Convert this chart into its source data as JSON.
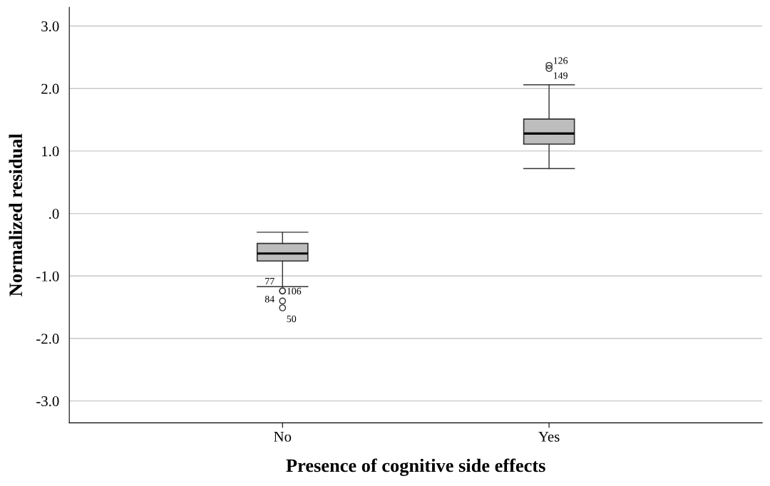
{
  "chart_data": {
    "type": "box",
    "xlabel": "Presence of cognitive side effects",
    "ylabel": "Normalized residual",
    "categories": [
      "No",
      "Yes"
    ],
    "series": [
      {
        "color": "#bdbdbd",
        "boxes": [
          {
            "low": -1.17,
            "q1": -0.76,
            "median": -0.64,
            "q3": -0.48,
            "high": -0.3,
            "outliers": [
              -1.24,
              -1.24,
              -1.4,
              -1.51
            ]
          },
          {
            "low": 0.72,
            "q1": 1.11,
            "median": 1.28,
            "q3": 1.51,
            "high": 2.06,
            "outliers": [
              2.37,
              2.32
            ]
          }
        ]
      }
    ],
    "ylim": [
      -3.35,
      3.3
    ],
    "yticks": [
      {
        "value": -3,
        "label": "-3.0"
      },
      {
        "value": -2,
        "label": "-2.0"
      },
      {
        "value": -1,
        "label": "-1.0"
      },
      {
        "value": 0,
        "label": ".0"
      },
      {
        "value": 1,
        "label": "1.0"
      },
      {
        "value": 2,
        "label": "2.0"
      },
      {
        "value": 3,
        "label": "3.0"
      }
    ],
    "grid": "y",
    "annotations": [
      "77",
      "106",
      "84",
      "50",
      "126",
      "149"
    ]
  }
}
